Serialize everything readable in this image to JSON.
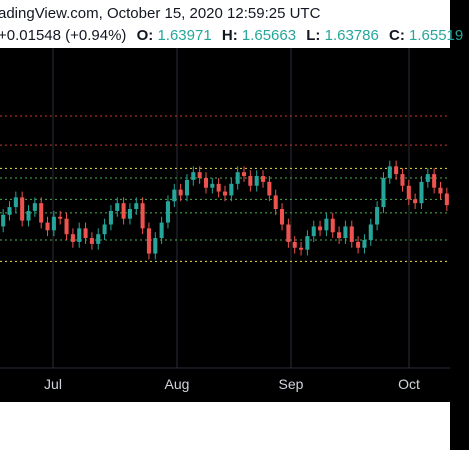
{
  "header": {
    "title": "adingView.com, October 15, 2020 12:59:25 UTC",
    "change": "+0.01548 (+0.94%)",
    "open_label": "O:",
    "open": "1.63971",
    "high_label": "H:",
    "high": "1.65663",
    "low_label": "L:",
    "low": "1.63786",
    "close_label": "C:",
    "close": "1.65519"
  },
  "colors": {
    "up": "#26a69a",
    "down": "#ef5350",
    "grid": "#2a2e39",
    "red_line": "#d0342c",
    "yellow_line": "#f0e040",
    "green_line": "#4caf50",
    "axis_text": "#d1d4dc"
  },
  "chart_data": {
    "type": "candlestick",
    "x_tick_labels": [
      "Jul",
      "Aug",
      "Sep",
      "Oct"
    ],
    "ylim": [
      1.585,
      1.745
    ],
    "horizontal_levels": [
      {
        "style": "red-dotted",
        "value": 1.713
      },
      {
        "style": "red-dotted",
        "value": 1.698
      },
      {
        "style": "yellow-dotted",
        "value": 1.686
      },
      {
        "style": "green-dotted",
        "value": 1.681
      },
      {
        "style": "green-dotted",
        "value": 1.67
      },
      {
        "style": "green-dotted",
        "value": 1.663
      },
      {
        "style": "green-dotted",
        "value": 1.649
      },
      {
        "style": "yellow-dotted",
        "value": 1.638
      }
    ],
    "candles_close": [
      1.662,
      1.666,
      1.671,
      1.659,
      1.664,
      1.668,
      1.658,
      1.654,
      1.661,
      1.66,
      1.652,
      1.648,
      1.655,
      1.65,
      1.647,
      1.652,
      1.657,
      1.664,
      1.668,
      1.66,
      1.665,
      1.668,
      1.655,
      1.642,
      1.65,
      1.658,
      1.669,
      1.675,
      1.672,
      1.68,
      1.684,
      1.681,
      1.676,
      1.678,
      1.674,
      1.672,
      1.678,
      1.684,
      1.682,
      1.677,
      1.682,
      1.679,
      1.672,
      1.665,
      1.657,
      1.648,
      1.645,
      1.644,
      1.651,
      1.656,
      1.654,
      1.66,
      1.653,
      1.65,
      1.656,
      1.648,
      1.645,
      1.649,
      1.657,
      1.666,
      1.681,
      1.687,
      1.683,
      1.677,
      1.67,
      1.668,
      1.679,
      1.683,
      1.676,
      1.673,
      1.667
    ],
    "candles_open": [
      1.656,
      1.662,
      1.666,
      1.671,
      1.659,
      1.664,
      1.668,
      1.658,
      1.654,
      1.661,
      1.66,
      1.652,
      1.648,
      1.655,
      1.65,
      1.647,
      1.652,
      1.657,
      1.664,
      1.668,
      1.66,
      1.665,
      1.668,
      1.655,
      1.642,
      1.65,
      1.658,
      1.669,
      1.675,
      1.672,
      1.68,
      1.684,
      1.681,
      1.676,
      1.678,
      1.674,
      1.672,
      1.678,
      1.684,
      1.682,
      1.677,
      1.682,
      1.679,
      1.672,
      1.665,
      1.657,
      1.648,
      1.645,
      1.644,
      1.651,
      1.656,
      1.654,
      1.66,
      1.653,
      1.65,
      1.656,
      1.648,
      1.645,
      1.649,
      1.657,
      1.666,
      1.681,
      1.687,
      1.683,
      1.677,
      1.67,
      1.668,
      1.679,
      1.683,
      1.676,
      1.673
    ]
  }
}
